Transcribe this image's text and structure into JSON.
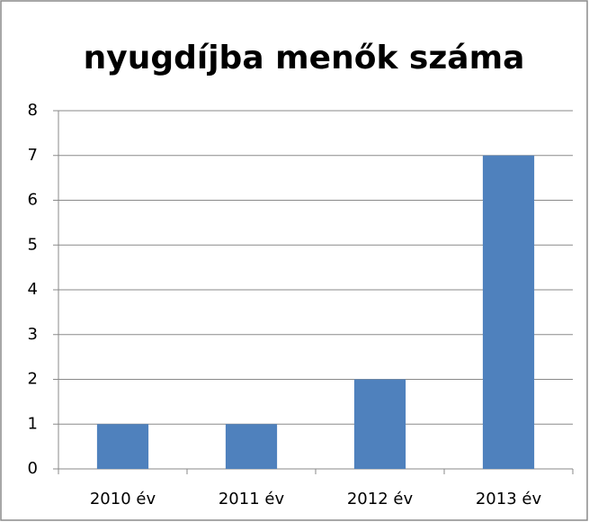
{
  "chart_data": {
    "type": "bar",
    "title": "nyugdíjba menők száma",
    "categories": [
      "2010 év",
      "2011 év",
      "2012 év",
      "2013 év"
    ],
    "values": [
      1,
      1,
      2,
      7
    ],
    "color": "#4f81bd",
    "ylim": [
      0,
      8
    ],
    "yticks": [
      0,
      1,
      2,
      3,
      4,
      5,
      6,
      7,
      8
    ],
    "grid": true
  }
}
